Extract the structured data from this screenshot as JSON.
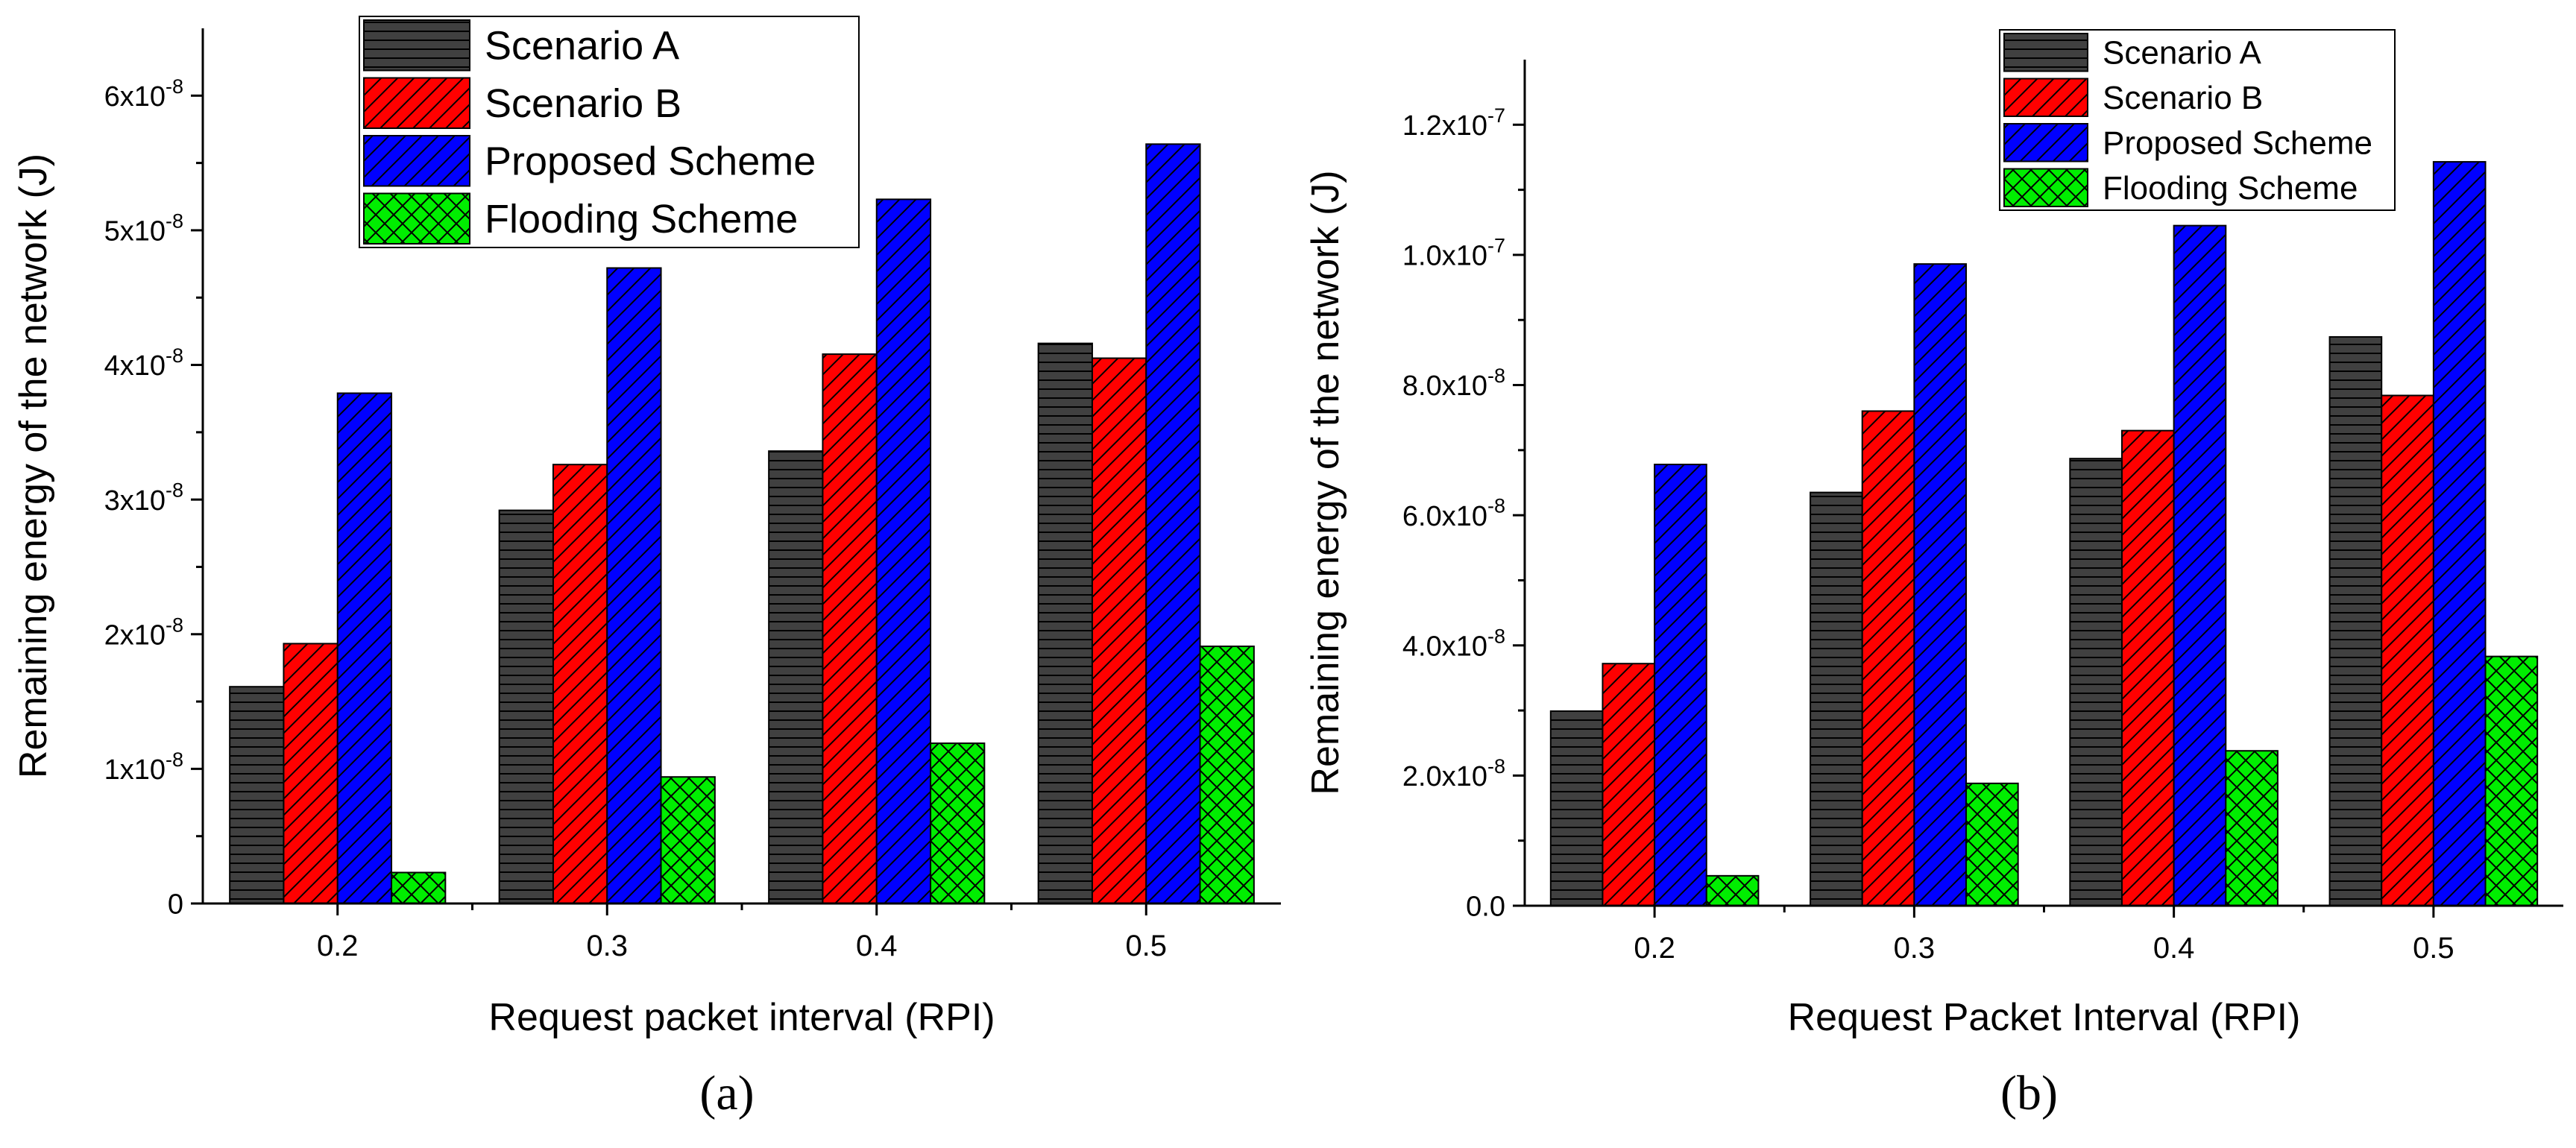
{
  "chart_data": [
    {
      "type": "bar",
      "panel_label": "(a)",
      "title": "",
      "xlabel": "Request packet interval (RPI)",
      "ylabel": "Remaining energy of the network (J)",
      "categories": [
        "0.2",
        "0.3",
        "0.4",
        "0.5"
      ],
      "ylim": [
        0,
        6.5e-08
      ],
      "yticks": [
        {
          "value": 0,
          "mant": "0",
          "exp": ""
        },
        {
          "value": 1e-08,
          "mant": "1x10",
          "exp": "-8"
        },
        {
          "value": 2e-08,
          "mant": "2x10",
          "exp": "-8"
        },
        {
          "value": 3e-08,
          "mant": "3x10",
          "exp": "-8"
        },
        {
          "value": 4e-08,
          "mant": "4x10",
          "exp": "-8"
        },
        {
          "value": 5e-08,
          "mant": "5x10",
          "exp": "-8"
        },
        {
          "value": 6e-08,
          "mant": "6x10",
          "exp": "-8"
        }
      ],
      "legend_position": "top-center",
      "series": [
        {
          "name": "Scenario A",
          "color": "#404040",
          "pattern": "horizontal",
          "values": [
            1.61e-08,
            2.92e-08,
            3.36e-08,
            4.16e-08
          ]
        },
        {
          "name": "Scenario B",
          "color": "#ff0000",
          "pattern": "diagonal",
          "values": [
            1.93e-08,
            3.26e-08,
            4.08e-08,
            4.05e-08
          ]
        },
        {
          "name": "Proposed Scheme",
          "color": "#0000ff",
          "pattern": "diagonal",
          "values": [
            3.79e-08,
            4.72e-08,
            5.23e-08,
            5.64e-08
          ]
        },
        {
          "name": "Flooding Scheme",
          "color": "#00ee00",
          "pattern": "crosshatch",
          "values": [
            2.3e-09,
            9.4e-09,
            1.19e-08,
            1.91e-08
          ]
        }
      ]
    },
    {
      "type": "bar",
      "panel_label": "(b)",
      "title": "",
      "xlabel": "Request Packet Interval (RPI)",
      "ylabel": "Remaining energy of the network (J)",
      "categories": [
        "0.2",
        "0.3",
        "0.4",
        "0.5"
      ],
      "ylim": [
        0,
        1.3e-07
      ],
      "yticks": [
        {
          "value": 0,
          "mant": "0.0",
          "exp": ""
        },
        {
          "value": 2e-08,
          "mant": "2.0x10",
          "exp": "-8"
        },
        {
          "value": 4e-08,
          "mant": "4.0x10",
          "exp": "-8"
        },
        {
          "value": 6e-08,
          "mant": "6.0x10",
          "exp": "-8"
        },
        {
          "value": 8e-08,
          "mant": "8.0x10",
          "exp": "-8"
        },
        {
          "value": 1e-07,
          "mant": "1.0x10",
          "exp": "-7"
        },
        {
          "value": 1.2e-07,
          "mant": "1.2x10",
          "exp": "-7"
        }
      ],
      "legend_position": "top-right",
      "series": [
        {
          "name": "Scenario A",
          "color": "#404040",
          "pattern": "horizontal",
          "values": [
            2.99e-08,
            6.35e-08,
            6.87e-08,
            8.74e-08
          ]
        },
        {
          "name": "Scenario B",
          "color": "#ff0000",
          "pattern": "diagonal",
          "values": [
            3.72e-08,
            7.6e-08,
            7.3e-08,
            7.84e-08
          ]
        },
        {
          "name": "Proposed Scheme",
          "color": "#0000ff",
          "pattern": "diagonal",
          "values": [
            6.78e-08,
            9.86e-08,
            1.045e-07,
            1.143e-07
          ]
        },
        {
          "name": "Flooding Scheme",
          "color": "#00ee00",
          "pattern": "crosshatch",
          "values": [
            4.6e-09,
            1.88e-08,
            2.38e-08,
            3.83e-08
          ]
        }
      ]
    }
  ]
}
